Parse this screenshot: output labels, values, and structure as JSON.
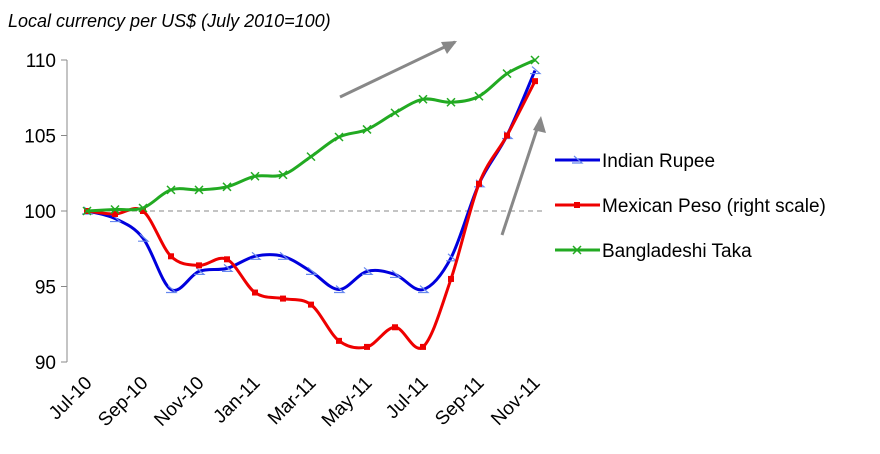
{
  "chart_data": {
    "type": "line",
    "title": "Local currency per US$ (July 2010=100)",
    "categories": [
      "Jul-10",
      null,
      "Sep-10",
      null,
      "Nov-10",
      null,
      "Jan-11",
      null,
      "Mar-11",
      null,
      "May-11",
      null,
      "Jul-11",
      null,
      "Sep-11",
      null,
      "Nov-11"
    ],
    "series": [
      {
        "name": "Indian Rupee",
        "color": "#0000dd",
        "marker": "triangle",
        "values": [
          100,
          99.5,
          98.2,
          94.8,
          96.0,
          96.2,
          97.0,
          97.0,
          96.0,
          94.8,
          96.0,
          95.8,
          94.8,
          96.9,
          101.8,
          105.0,
          109.3
        ]
      },
      {
        "name": "Mexican Peso (right scale)",
        "color": "#ee0000",
        "marker": "square",
        "values": [
          100,
          99.8,
          100,
          97.0,
          96.4,
          96.8,
          94.6,
          94.2,
          93.8,
          91.4,
          91.0,
          92.3,
          91.0,
          95.5,
          101.8,
          105.0,
          108.6
        ]
      },
      {
        "name": "Bangladeshi Taka",
        "color": "#22aa22",
        "marker": "x",
        "values": [
          100,
          100.1,
          100.2,
          101.4,
          101.4,
          101.6,
          102.3,
          102.4,
          103.6,
          104.9,
          105.4,
          106.5,
          107.4,
          107.2,
          107.6,
          109.1,
          110.0
        ]
      }
    ],
    "ylim": [
      90,
      110
    ],
    "yticks": [
      90,
      95,
      100,
      105,
      110
    ],
    "baseline": 100,
    "legend": "right"
  }
}
